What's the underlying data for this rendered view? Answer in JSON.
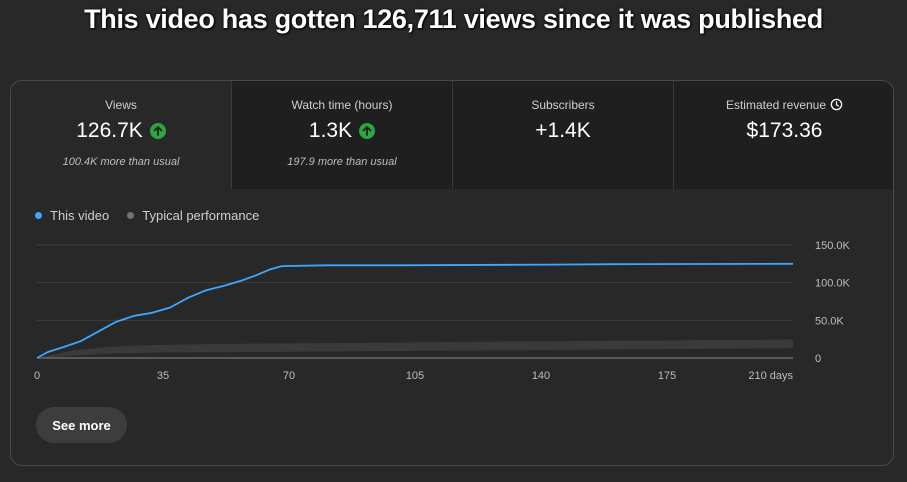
{
  "headline": "This video has gotten 126,711 views since it was published",
  "metrics": [
    {
      "label": "Views",
      "value": "126.7K",
      "trend": "up",
      "sub": "100.4K more than usual"
    },
    {
      "label": "Watch time (hours)",
      "value": "1.3K",
      "trend": "up",
      "sub": "197.9 more than usual"
    },
    {
      "label": "Subscribers",
      "value": "+1.4K",
      "trend": "",
      "sub": ""
    },
    {
      "label": "Estimated revenue",
      "value": "$173.36",
      "trend": "",
      "sub": "",
      "icon": "clock-icon"
    }
  ],
  "legend": {
    "this_video": "This video",
    "typical": "Typical performance"
  },
  "colors": {
    "this_video": "#3ea6ff",
    "typical": "#717171",
    "trend_up": "#2ba640"
  },
  "see_more_label": "See more",
  "chart_data": {
    "type": "line",
    "xlabel": "",
    "ylabel": "",
    "x_ticks": [
      "0",
      "35",
      "70",
      "105",
      "140",
      "175",
      "210 days"
    ],
    "y_ticks": [
      "150.0K",
      "100.0K",
      "50.0K",
      "0"
    ],
    "xlim": [
      0,
      210
    ],
    "ylim": [
      0,
      150000
    ],
    "series": [
      {
        "name": "This video",
        "x": [
          0,
          3,
          7,
          12,
          17,
          22,
          27,
          32,
          37,
          42,
          47,
          52,
          57,
          61,
          65,
          68,
          80,
          100,
          143,
          160,
          210
        ],
        "y": [
          0,
          8000,
          14000,
          22000,
          35000,
          48000,
          56000,
          60000,
          67000,
          80000,
          90000,
          96000,
          103000,
          110000,
          118000,
          122000,
          123000,
          123000,
          124000,
          124500,
          125000
        ]
      },
      {
        "name": "Typical performance",
        "x": [
          0,
          10,
          20,
          30,
          40,
          60,
          90,
          120,
          150,
          180,
          210
        ],
        "y_low": [
          0,
          3000,
          6000,
          7000,
          7500,
          8000,
          9000,
          10000,
          11000,
          12000,
          13000
        ],
        "y_high": [
          0,
          10000,
          15000,
          17000,
          18000,
          19000,
          20000,
          21500,
          22500,
          23500,
          24500
        ]
      }
    ],
    "grid": true
  }
}
